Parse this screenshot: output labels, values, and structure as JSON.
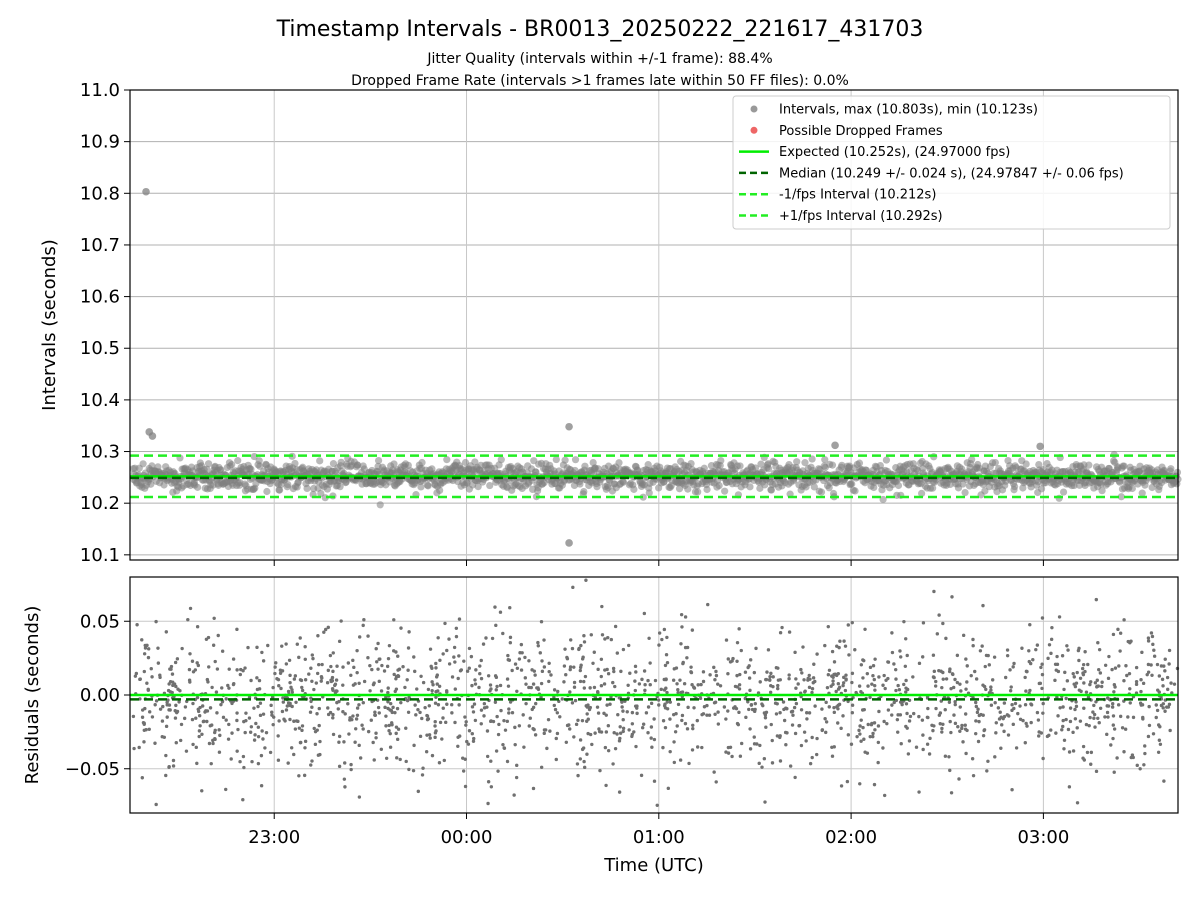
{
  "figure": {
    "title": "Timestamp Intervals - BR0013_20250222_221617_431703",
    "subtitle_1": "Jitter Quality (intervals within +/-1 frame): 88.4%",
    "subtitle_2": "Dropped Frame Rate (intervals >1 frames late within 50 FF files): 0.0%"
  },
  "chart_data": [
    {
      "type": "scatter",
      "panel": "intervals",
      "xlabel": "",
      "ylabel": "Intervals (seconds)",
      "x_unit": "time (UTC)",
      "xlim": [
        "22:15",
        "03:42"
      ],
      "ylim": [
        10.09,
        11.0
      ],
      "yticks": [
        "10.1",
        "10.2",
        "10.3",
        "10.4",
        "10.5",
        "10.6",
        "10.7",
        "10.8",
        "10.9",
        "11.0"
      ],
      "grid": true,
      "legend_position": "top-right",
      "reference_lines": [
        {
          "name": "Expected (10.252s), (24.97000 fps)",
          "y": 10.252,
          "style": "solid",
          "color": "#00ee00"
        },
        {
          "name": "Median (10.249 +/- 0.024 s), (24.97847 +/- 0.06 fps)",
          "y": 10.249,
          "style": "dashed",
          "color": "#006400"
        },
        {
          "name": "-1/fps Interval (10.212s)",
          "y": 10.212,
          "style": "dashed",
          "color": "#22ee22"
        },
        {
          "name": "+1/fps Interval (10.292s)",
          "y": 10.292,
          "style": "dashed",
          "color": "#22ee22"
        }
      ],
      "series": [
        {
          "name": "Intervals, max (10.803s), min (10.123s)",
          "color": "#808080",
          "count_approx": 1900,
          "x_range": [
            "22:16",
            "03:42"
          ],
          "center": 10.252,
          "spread_sd": 0.024,
          "points": [
            {
              "x": "22:20",
              "y": 10.803
            },
            {
              "x": "22:21",
              "y": 10.338
            },
            {
              "x": "22:22",
              "y": 10.33
            },
            {
              "x": "00:32",
              "y": 10.348
            },
            {
              "x": "00:32",
              "y": 10.123
            },
            {
              "x": "01:55",
              "y": 10.312
            },
            {
              "x": "02:59",
              "y": 10.31
            }
          ]
        },
        {
          "name": "Possible Dropped Frames",
          "color": "#ff5555",
          "points": []
        }
      ],
      "legend": [
        {
          "label": "Intervals, max (10.803s), min (10.123s)",
          "kind": "dot",
          "color": "#999999"
        },
        {
          "label": "Possible Dropped Frames",
          "kind": "dot",
          "color": "#ee6666"
        },
        {
          "label": "Expected (10.252s), (24.97000 fps)",
          "kind": "solid",
          "color": "#00ee00"
        },
        {
          "label": "Median (10.249 +/- 0.024 s), (24.97847 +/- 0.06 fps)",
          "kind": "dashed",
          "color": "#006400"
        },
        {
          "label": "-1/fps Interval (10.212s)",
          "kind": "dashed",
          "color": "#22ee22"
        },
        {
          "label": "+1/fps Interval (10.292s)",
          "kind": "dashed",
          "color": "#22ee22"
        }
      ]
    },
    {
      "type": "scatter",
      "panel": "residuals",
      "xlabel": "Time (UTC)",
      "ylabel": "Residuals (seconds)",
      "xlim": [
        "22:15",
        "03:42"
      ],
      "ylim": [
        -0.08,
        0.08
      ],
      "yticks": [
        "0.05",
        "0.00",
        "−0.05"
      ],
      "ytick_values": [
        0.05,
        0.0,
        -0.05
      ],
      "xticks": [
        "23:00",
        "00:00",
        "01:00",
        "02:00",
        "03:00"
      ],
      "grid": true,
      "reference_lines": [
        {
          "y": 0.0,
          "style": "solid",
          "color": "#00ee00"
        },
        {
          "y": -0.003,
          "style": "dashed",
          "color": "#006400"
        }
      ],
      "series": [
        {
          "name": "",
          "color": "#707070",
          "count_approx": 1900,
          "x_range": [
            "22:16",
            "03:42"
          ],
          "center": -0.003,
          "spread_sd": 0.024,
          "range": [
            -0.077,
            0.079
          ]
        }
      ]
    }
  ]
}
